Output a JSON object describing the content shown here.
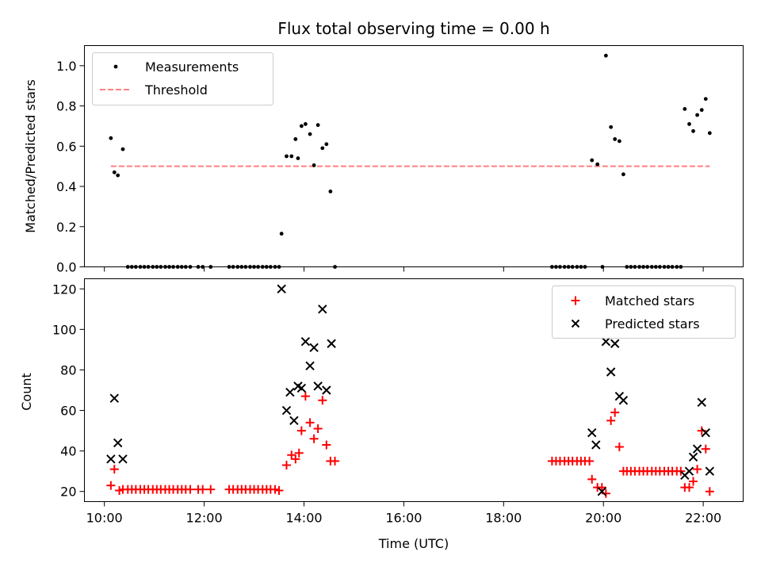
{
  "chart_data": {
    "type": "scatter",
    "title": "Flux total observing time = 0.00 h",
    "xlabel": "Time (UTC)",
    "x_unit": "hours UTC",
    "xlim": [
      9.6,
      22.8
    ],
    "x_ticks": [
      10,
      12,
      14,
      16,
      18,
      20,
      22
    ],
    "x_tick_labels": [
      "10:00",
      "12:00",
      "14:00",
      "16:00",
      "18:00",
      "20:00",
      "22:00"
    ],
    "colors": {
      "measurements": "#000000",
      "threshold": "#ff7f7f",
      "matched": "#ff0000",
      "predicted": "#000000"
    },
    "panels": [
      {
        "ylabel": "Matched/Predicted stars",
        "ylim": [
          0,
          1.1
        ],
        "y_ticks": [
          0,
          0.2,
          0.4,
          0.6,
          0.8,
          1.0
        ],
        "y_tick_labels": [
          "0.0",
          "0.2",
          "0.4",
          "0.6",
          "0.8",
          "1.0"
        ],
        "legend_position": "top-left",
        "threshold": {
          "name": "Threshold",
          "y": 0.5,
          "x_range": [
            10.13,
            22.13
          ]
        },
        "series": [
          {
            "name": "Measurements",
            "points": [
              [
                10.13,
                0.64
              ],
              [
                10.2,
                0.47
              ],
              [
                10.27,
                0.455
              ],
              [
                10.37,
                0.585
              ],
              [
                10.47,
                0.0
              ],
              [
                10.55,
                0.0
              ],
              [
                10.63,
                0.0
              ],
              [
                10.72,
                0.0
              ],
              [
                10.8,
                0.0
              ],
              [
                10.88,
                0.0
              ],
              [
                10.97,
                0.0
              ],
              [
                11.05,
                0.0
              ],
              [
                11.13,
                0.0
              ],
              [
                11.22,
                0.0
              ],
              [
                11.3,
                0.0
              ],
              [
                11.38,
                0.0
              ],
              [
                11.47,
                0.0
              ],
              [
                11.55,
                0.0
              ],
              [
                11.63,
                0.0
              ],
              [
                11.72,
                0.0
              ],
              [
                11.88,
                0.0
              ],
              [
                11.97,
                0.0
              ],
              [
                12.13,
                0.0
              ],
              [
                12.5,
                0.0
              ],
              [
                12.58,
                0.0
              ],
              [
                12.67,
                0.0
              ],
              [
                12.75,
                0.0
              ],
              [
                12.83,
                0.0
              ],
              [
                12.92,
                0.0
              ],
              [
                13.0,
                0.0
              ],
              [
                13.08,
                0.0
              ],
              [
                13.17,
                0.0
              ],
              [
                13.25,
                0.0
              ],
              [
                13.33,
                0.0
              ],
              [
                13.42,
                0.0
              ],
              [
                13.5,
                0.0
              ],
              [
                13.55,
                0.165
              ],
              [
                13.65,
                0.55
              ],
              [
                13.75,
                0.55
              ],
              [
                13.83,
                0.635
              ],
              [
                13.88,
                0.54
              ],
              [
                13.95,
                0.7
              ],
              [
                14.03,
                0.71
              ],
              [
                14.12,
                0.66
              ],
              [
                14.2,
                0.505
              ],
              [
                14.28,
                0.705
              ],
              [
                14.37,
                0.59
              ],
              [
                14.45,
                0.61
              ],
              [
                14.53,
                0.375
              ],
              [
                14.62,
                0.0
              ],
              [
                18.97,
                0.0
              ],
              [
                19.05,
                0.0
              ],
              [
                19.13,
                0.0
              ],
              [
                19.22,
                0.0
              ],
              [
                19.3,
                0.0
              ],
              [
                19.38,
                0.0
              ],
              [
                19.47,
                0.0
              ],
              [
                19.55,
                0.0
              ],
              [
                19.63,
                0.0
              ],
              [
                19.77,
                0.53
              ],
              [
                19.88,
                0.51
              ],
              [
                19.98,
                0.0
              ],
              [
                20.05,
                1.05
              ],
              [
                20.15,
                0.695
              ],
              [
                20.23,
                0.635
              ],
              [
                20.32,
                0.625
              ],
              [
                20.4,
                0.46
              ],
              [
                20.47,
                0.0
              ],
              [
                20.55,
                0.0
              ],
              [
                20.63,
                0.0
              ],
              [
                20.72,
                0.0
              ],
              [
                20.8,
                0.0
              ],
              [
                20.88,
                0.0
              ],
              [
                20.97,
                0.0
              ],
              [
                21.05,
                0.0
              ],
              [
                21.13,
                0.0
              ],
              [
                21.22,
                0.0
              ],
              [
                21.3,
                0.0
              ],
              [
                21.38,
                0.0
              ],
              [
                21.47,
                0.0
              ],
              [
                21.55,
                0.0
              ],
              [
                21.63,
                0.785
              ],
              [
                21.72,
                0.71
              ],
              [
                21.8,
                0.675
              ],
              [
                21.88,
                0.755
              ],
              [
                21.97,
                0.78
              ],
              [
                22.05,
                0.835
              ],
              [
                22.13,
                0.665
              ]
            ]
          }
        ]
      },
      {
        "ylabel": "Count",
        "ylim": [
          15,
          125
        ],
        "y_ticks": [
          20,
          40,
          60,
          80,
          100,
          120
        ],
        "y_tick_labels": [
          "20",
          "40",
          "60",
          "80",
          "100",
          "120"
        ],
        "legend_position": "top-right",
        "series": [
          {
            "name": "Matched stars",
            "marker": "plus",
            "points": [
              [
                10.13,
                23
              ],
              [
                10.2,
                31
              ],
              [
                10.3,
                20.5
              ],
              [
                10.37,
                21
              ],
              [
                10.47,
                21
              ],
              [
                10.55,
                21
              ],
              [
                10.63,
                21
              ],
              [
                10.72,
                21
              ],
              [
                10.8,
                21
              ],
              [
                10.88,
                21
              ],
              [
                10.97,
                21
              ],
              [
                11.05,
                21
              ],
              [
                11.13,
                21
              ],
              [
                11.22,
                21
              ],
              [
                11.3,
                21
              ],
              [
                11.38,
                21
              ],
              [
                11.47,
                21
              ],
              [
                11.55,
                21
              ],
              [
                11.63,
                21
              ],
              [
                11.72,
                21
              ],
              [
                11.88,
                21
              ],
              [
                11.97,
                21
              ],
              [
                12.13,
                21
              ],
              [
                12.5,
                21
              ],
              [
                12.58,
                21
              ],
              [
                12.67,
                21
              ],
              [
                12.75,
                21
              ],
              [
                12.83,
                21
              ],
              [
                12.92,
                21
              ],
              [
                13.0,
                21
              ],
              [
                13.08,
                21
              ],
              [
                13.17,
                21
              ],
              [
                13.25,
                21
              ],
              [
                13.33,
                21
              ],
              [
                13.42,
                21
              ],
              [
                13.5,
                20.5
              ],
              [
                13.65,
                33
              ],
              [
                13.75,
                38
              ],
              [
                13.83,
                36
              ],
              [
                13.9,
                39
              ],
              [
                13.95,
                50
              ],
              [
                14.03,
                67
              ],
              [
                14.12,
                54
              ],
              [
                14.2,
                46
              ],
              [
                14.28,
                51
              ],
              [
                14.37,
                65
              ],
              [
                14.45,
                43
              ],
              [
                14.53,
                35
              ],
              [
                14.62,
                35
              ],
              [
                18.97,
                35
              ],
              [
                19.05,
                35
              ],
              [
                19.13,
                35
              ],
              [
                19.22,
                35
              ],
              [
                19.3,
                35
              ],
              [
                19.38,
                35
              ],
              [
                19.47,
                35
              ],
              [
                19.55,
                35
              ],
              [
                19.63,
                35
              ],
              [
                19.72,
                35
              ],
              [
                19.77,
                26
              ],
              [
                19.88,
                22
              ],
              [
                19.97,
                22
              ],
              [
                20.05,
                19
              ],
              [
                20.15,
                55
              ],
              [
                20.23,
                59
              ],
              [
                20.32,
                42
              ],
              [
                20.4,
                30
              ],
              [
                20.47,
                30
              ],
              [
                20.55,
                30
              ],
              [
                20.63,
                30
              ],
              [
                20.72,
                30
              ],
              [
                20.8,
                30
              ],
              [
                20.88,
                30
              ],
              [
                20.97,
                30
              ],
              [
                21.05,
                30
              ],
              [
                21.13,
                30
              ],
              [
                21.22,
                30
              ],
              [
                21.3,
                30
              ],
              [
                21.38,
                30
              ],
              [
                21.47,
                30
              ],
              [
                21.55,
                30
              ],
              [
                21.63,
                22
              ],
              [
                21.72,
                22
              ],
              [
                21.8,
                25
              ],
              [
                21.88,
                31
              ],
              [
                21.97,
                50
              ],
              [
                22.05,
                41
              ],
              [
                22.13,
                20
              ]
            ]
          },
          {
            "name": "Predicted stars",
            "marker": "x",
            "points": [
              [
                10.13,
                36
              ],
              [
                10.2,
                66
              ],
              [
                10.27,
                44
              ],
              [
                10.37,
                36
              ],
              [
                13.55,
                120
              ],
              [
                13.65,
                60
              ],
              [
                13.72,
                69
              ],
              [
                13.8,
                55
              ],
              [
                13.88,
                72
              ],
              [
                13.95,
                71
              ],
              [
                14.03,
                94
              ],
              [
                14.12,
                82
              ],
              [
                14.2,
                91
              ],
              [
                14.28,
                72
              ],
              [
                14.37,
                110
              ],
              [
                14.45,
                70
              ],
              [
                14.55,
                93
              ],
              [
                19.77,
                49
              ],
              [
                19.85,
                43
              ],
              [
                19.97,
                20
              ],
              [
                20.05,
                94
              ],
              [
                20.15,
                79
              ],
              [
                20.23,
                93
              ],
              [
                20.32,
                67
              ],
              [
                20.4,
                65
              ],
              [
                21.63,
                28
              ],
              [
                21.72,
                30
              ],
              [
                21.8,
                37
              ],
              [
                21.88,
                41
              ],
              [
                21.97,
                64
              ],
              [
                22.05,
                49
              ],
              [
                22.13,
                30
              ]
            ]
          }
        ]
      }
    ]
  }
}
